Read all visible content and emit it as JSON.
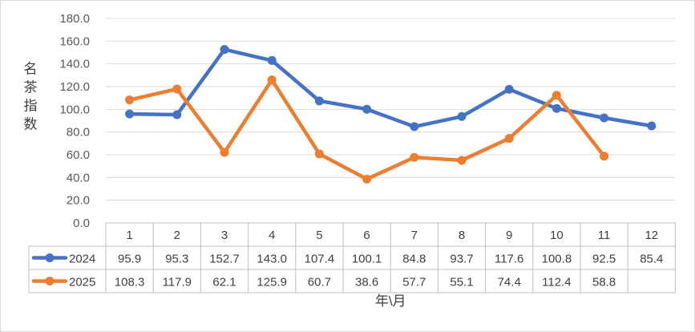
{
  "chart_data": {
    "type": "line",
    "ylabel": "名茶指数",
    "xlabel": "年\\月",
    "ylim": [
      0,
      180
    ],
    "yticks": [
      "0.0",
      "20.0",
      "40.0",
      "60.0",
      "80.0",
      "100.0",
      "120.0",
      "140.0",
      "160.0",
      "180.0"
    ],
    "categories": [
      "1",
      "2",
      "3",
      "4",
      "5",
      "6",
      "7",
      "8",
      "9",
      "10",
      "11",
      "12"
    ],
    "grid": true,
    "legend_placement": "data-table",
    "series": [
      {
        "name": "2024",
        "color": "#4472C4",
        "values": [
          95.9,
          95.3,
          152.7,
          143.0,
          107.4,
          100.1,
          84.8,
          93.7,
          117.6,
          100.8,
          92.5,
          85.4
        ],
        "labels": [
          "95.9",
          "95.3",
          "152.7",
          "143.0",
          "107.4",
          "100.1",
          "84.8",
          "93.7",
          "117.6",
          "100.8",
          "92.5",
          "85.4"
        ]
      },
      {
        "name": "2025",
        "color": "#ED7D31",
        "values": [
          108.3,
          117.9,
          62.1,
          125.9,
          60.7,
          38.6,
          57.7,
          55.1,
          74.4,
          112.4,
          58.8,
          null
        ],
        "labels": [
          "108.3",
          "117.9",
          "62.1",
          "125.9",
          "60.7",
          "38.6",
          "57.7",
          "55.1",
          "74.4",
          "112.4",
          "58.8",
          ""
        ]
      }
    ]
  }
}
